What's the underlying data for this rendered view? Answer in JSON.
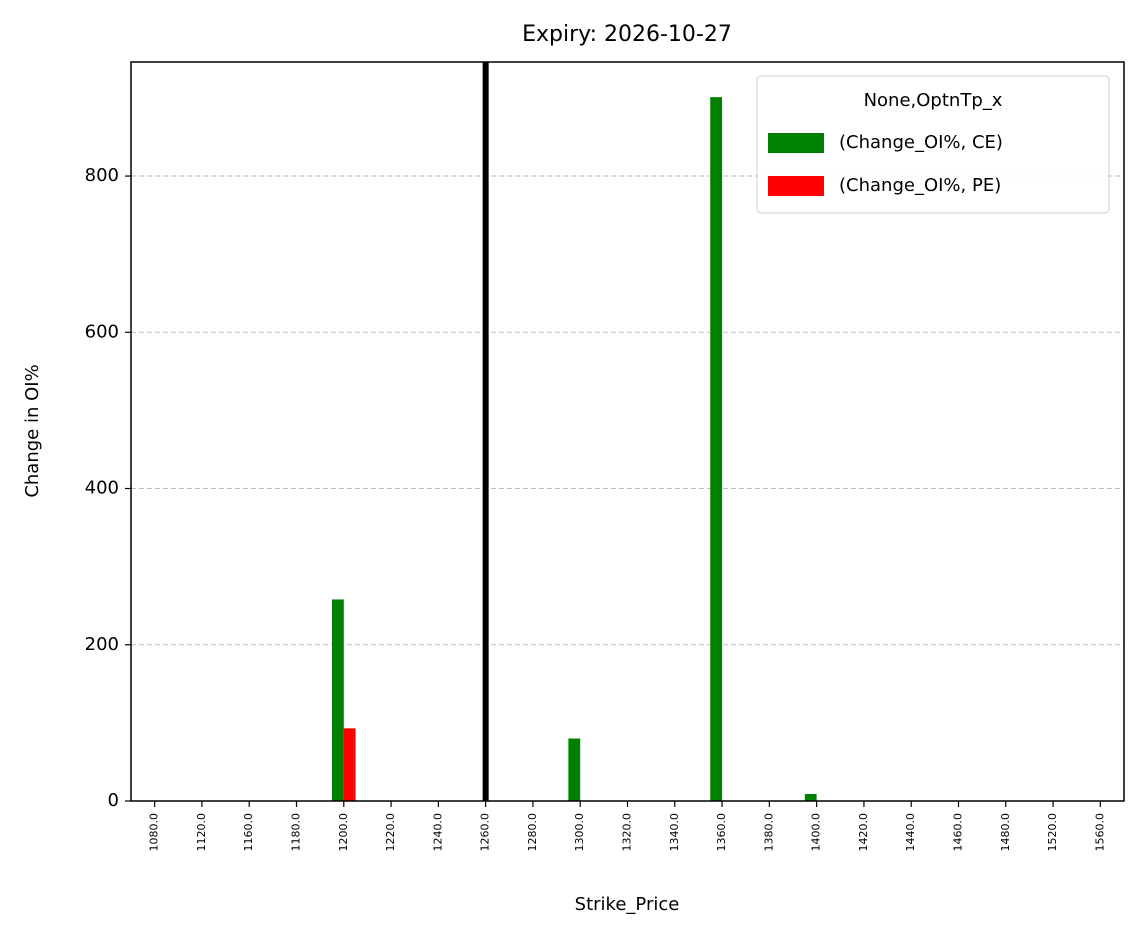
{
  "chart_data": {
    "type": "bar",
    "title": "Expiry: 2026-10-27",
    "x_label": "Strike_Price",
    "y_label": "Change in OI%",
    "categories": [
      "1080.0",
      "1120.0",
      "1160.0",
      "1180.0",
      "1200.0",
      "1220.0",
      "1240.0",
      "1260.0",
      "1280.0",
      "1300.0",
      "1320.0",
      "1340.0",
      "1360.0",
      "1380.0",
      "1400.0",
      "1420.0",
      "1440.0",
      "1460.0",
      "1480.0",
      "1520.0",
      "1560.0"
    ],
    "series": [
      {
        "name": " (Change_OI%, CE)",
        "color": "#008000",
        "values": [
          0,
          0,
          0,
          0,
          258,
          0,
          0,
          0,
          0,
          80,
          0,
          0,
          901,
          0,
          9,
          0,
          0,
          0,
          0,
          0,
          0
        ]
      },
      {
        "name": " (Change_OI%, PE)",
        "color": "#ff0000",
        "values": [
          0,
          0,
          0,
          0,
          93,
          0,
          0,
          0,
          0,
          0,
          0,
          0,
          0,
          0,
          0,
          0,
          0,
          0,
          0,
          0,
          0
        ]
      }
    ],
    "legend_title": "None,OptnTp_x",
    "legend_position": "upper right",
    "reference_line": {
      "x": 1260,
      "color": "#000000"
    },
    "ylim": [
      0,
      946
    ],
    "yticks": [
      0,
      200,
      400,
      600,
      800
    ],
    "grid": true
  }
}
